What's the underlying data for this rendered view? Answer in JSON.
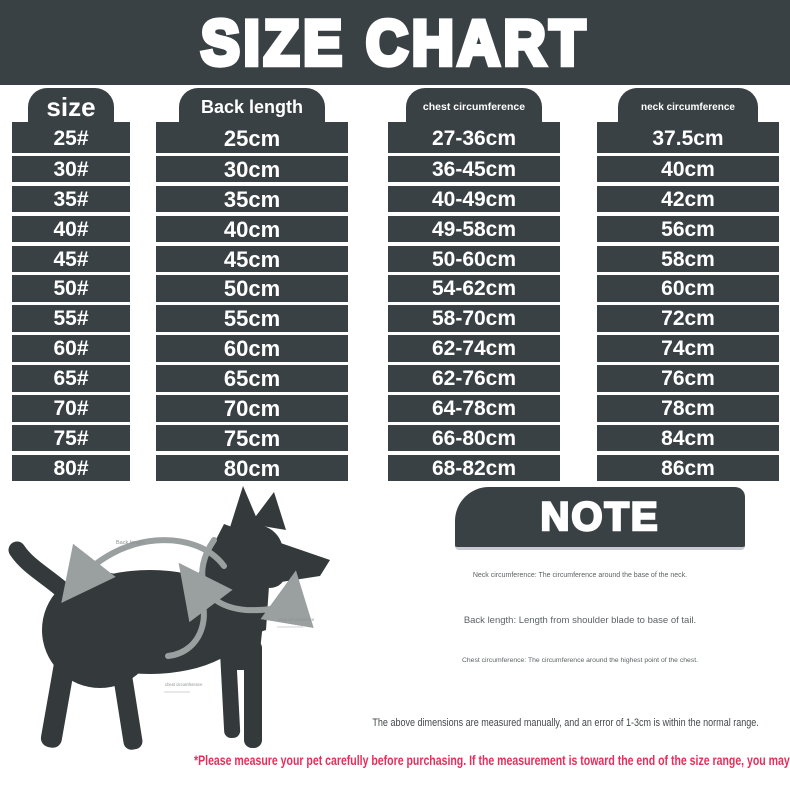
{
  "title": "SIZE CHART",
  "colors": {
    "dark": "#3a4144",
    "red": "#e92c59",
    "arrow": "#9aa0a0"
  },
  "table": {
    "columns": [
      {
        "header": "size",
        "values": [
          "25#",
          "30#",
          "35#",
          "40#",
          "45#",
          "50#",
          "55#",
          "60#",
          "65#",
          "70#",
          "75#",
          "80#"
        ]
      },
      {
        "header": "Back length",
        "values": [
          "25cm",
          "30cm",
          "35cm",
          "40cm",
          "45cm",
          "50cm",
          "55cm",
          "60cm",
          "65cm",
          "70cm",
          "75cm",
          "80cm"
        ]
      },
      {
        "header": "chest circumference",
        "values": [
          "27-36cm",
          "36-45cm",
          "40-49cm",
          "49-58cm",
          "50-60cm",
          "54-62cm",
          "58-70cm",
          "62-74cm",
          "62-76cm",
          "64-78cm",
          "66-80cm",
          "68-82cm"
        ]
      },
      {
        "header": "neck circumference",
        "values": [
          "37.5cm",
          "40cm",
          "42cm",
          "56cm",
          "58cm",
          "60cm",
          "72cm",
          "74cm",
          "76cm",
          "78cm",
          "84cm",
          "86cm"
        ]
      }
    ]
  },
  "chart_data": {
    "type": "table",
    "title": "SIZE CHART",
    "columns": [
      "size",
      "Back length",
      "chest circumference",
      "neck circumference"
    ],
    "rows": [
      [
        "25#",
        "25cm",
        "27-36cm",
        "37.5cm"
      ],
      [
        "30#",
        "30cm",
        "36-45cm",
        "40cm"
      ],
      [
        "35#",
        "35cm",
        "40-49cm",
        "42cm"
      ],
      [
        "40#",
        "40cm",
        "49-58cm",
        "56cm"
      ],
      [
        "45#",
        "45cm",
        "50-60cm",
        "58cm"
      ],
      [
        "50#",
        "50cm",
        "54-62cm",
        "60cm"
      ],
      [
        "55#",
        "55cm",
        "58-70cm",
        "72cm"
      ],
      [
        "60#",
        "60cm",
        "62-74cm",
        "74cm"
      ],
      [
        "65#",
        "65cm",
        "62-76cm",
        "76cm"
      ],
      [
        "70#",
        "70cm",
        "64-78cm",
        "78cm"
      ],
      [
        "75#",
        "75cm",
        "66-80cm",
        "84cm"
      ],
      [
        "80#",
        "80cm",
        "68-82cm",
        "86cm"
      ]
    ]
  },
  "diagram": {
    "labels": {
      "back": "Back length",
      "neck": "neck circumference",
      "chest": "chest circumference"
    }
  },
  "note": {
    "title": "NOTE",
    "lines": [
      "Neck circumference: The circumference around the base of the neck.",
      "Back length: Length from shoulder blade to base of tail.",
      "Chest circumference: The circumference around the highest point of the chest."
    ],
    "tolerance": "The above dimensions are measured manually, and an error of 1-3cm is within the normal range."
  },
  "footer_warning": "*Please measure your pet carefully before purchasing. If the measurement is toward the end of the size range, you may choose a larger size."
}
